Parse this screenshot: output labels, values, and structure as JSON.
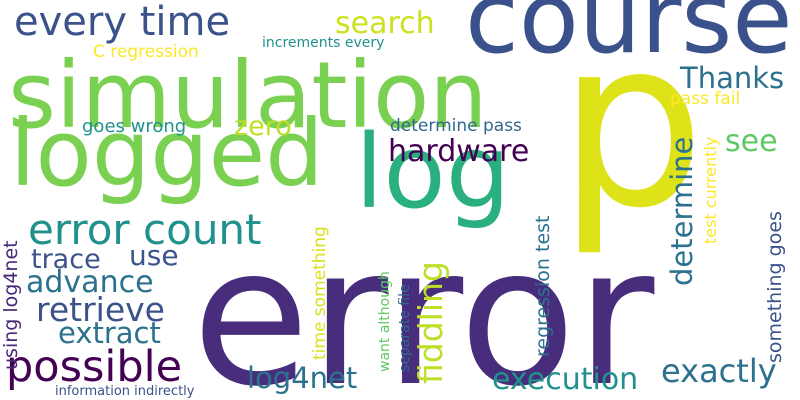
{
  "words": [
    {
      "key": "error",
      "text": "error",
      "color": "#472d7b"
    },
    {
      "key": "p",
      "text": "p",
      "color": "#dde318"
    },
    {
      "key": "course",
      "text": "course",
      "color": "#3b518b"
    },
    {
      "key": "simulation",
      "text": "simulation",
      "color": "#7ad151"
    },
    {
      "key": "logged",
      "text": "logged",
      "color": "#7ad151"
    },
    {
      "key": "log",
      "text": "log",
      "color": "#2ab07f"
    },
    {
      "key": "every_time",
      "text": "every time",
      "color": "#3b528b"
    },
    {
      "key": "error_count",
      "text": "error count",
      "color": "#21918c"
    },
    {
      "key": "possible",
      "text": "possible",
      "color": "#440154"
    },
    {
      "key": "search",
      "text": "search",
      "color": "#cde11d"
    },
    {
      "key": "thanks",
      "text": "Thanks",
      "color": "#2c728e"
    },
    {
      "key": "hardware",
      "text": "hardware",
      "color": "#440154"
    },
    {
      "key": "zero",
      "text": "zero",
      "color": "#bddf26"
    },
    {
      "key": "see",
      "text": "see",
      "color": "#5ec962"
    },
    {
      "key": "determine",
      "text": "determine",
      "color": "#2c728e"
    },
    {
      "key": "trace",
      "text": "trace",
      "color": "#3b528b"
    },
    {
      "key": "use",
      "text": "use",
      "color": "#3b528b"
    },
    {
      "key": "advance",
      "text": "advance",
      "color": "#2c728e"
    },
    {
      "key": "retrieve",
      "text": "retrieve",
      "color": "#3b528b"
    },
    {
      "key": "extract",
      "text": "extract",
      "color": "#2c728e"
    },
    {
      "key": "fiddling",
      "text": "fiddling",
      "color": "#bddf26"
    },
    {
      "key": "log4net",
      "text": "log4net",
      "color": "#2c728e"
    },
    {
      "key": "execution",
      "text": "execution",
      "color": "#21918c"
    },
    {
      "key": "exactly",
      "text": "exactly",
      "color": "#2c728e"
    },
    {
      "key": "c_regression",
      "text": "C regression",
      "color": "#fde725"
    },
    {
      "key": "increments_every",
      "text": "increments every",
      "color": "#21918c"
    },
    {
      "key": "goes_wrong",
      "text": "goes wrong",
      "color": "#21918c"
    },
    {
      "key": "determine_pass",
      "text": "determine pass",
      "color": "#31688e"
    },
    {
      "key": "pass_fail",
      "text": "pass fail",
      "color": "#fde725"
    },
    {
      "key": "test_currently",
      "text": "test currently",
      "color": "#fde725"
    },
    {
      "key": "regression_test",
      "text": "regression test",
      "color": "#2c728e"
    },
    {
      "key": "something_goes",
      "text": "something goes",
      "color": "#3b528b"
    },
    {
      "key": "using_log4net",
      "text": "using log4net",
      "color": "#482878"
    },
    {
      "key": "time_something",
      "text": "time something",
      "color": "#d8e219"
    },
    {
      "key": "want_although",
      "text": "want although",
      "color": "#5ec962"
    },
    {
      "key": "separate_file",
      "text": "separate file",
      "color": "#31688e"
    },
    {
      "key": "information_indirectly",
      "text": "information indirectly",
      "color": "#3b528b"
    }
  ]
}
